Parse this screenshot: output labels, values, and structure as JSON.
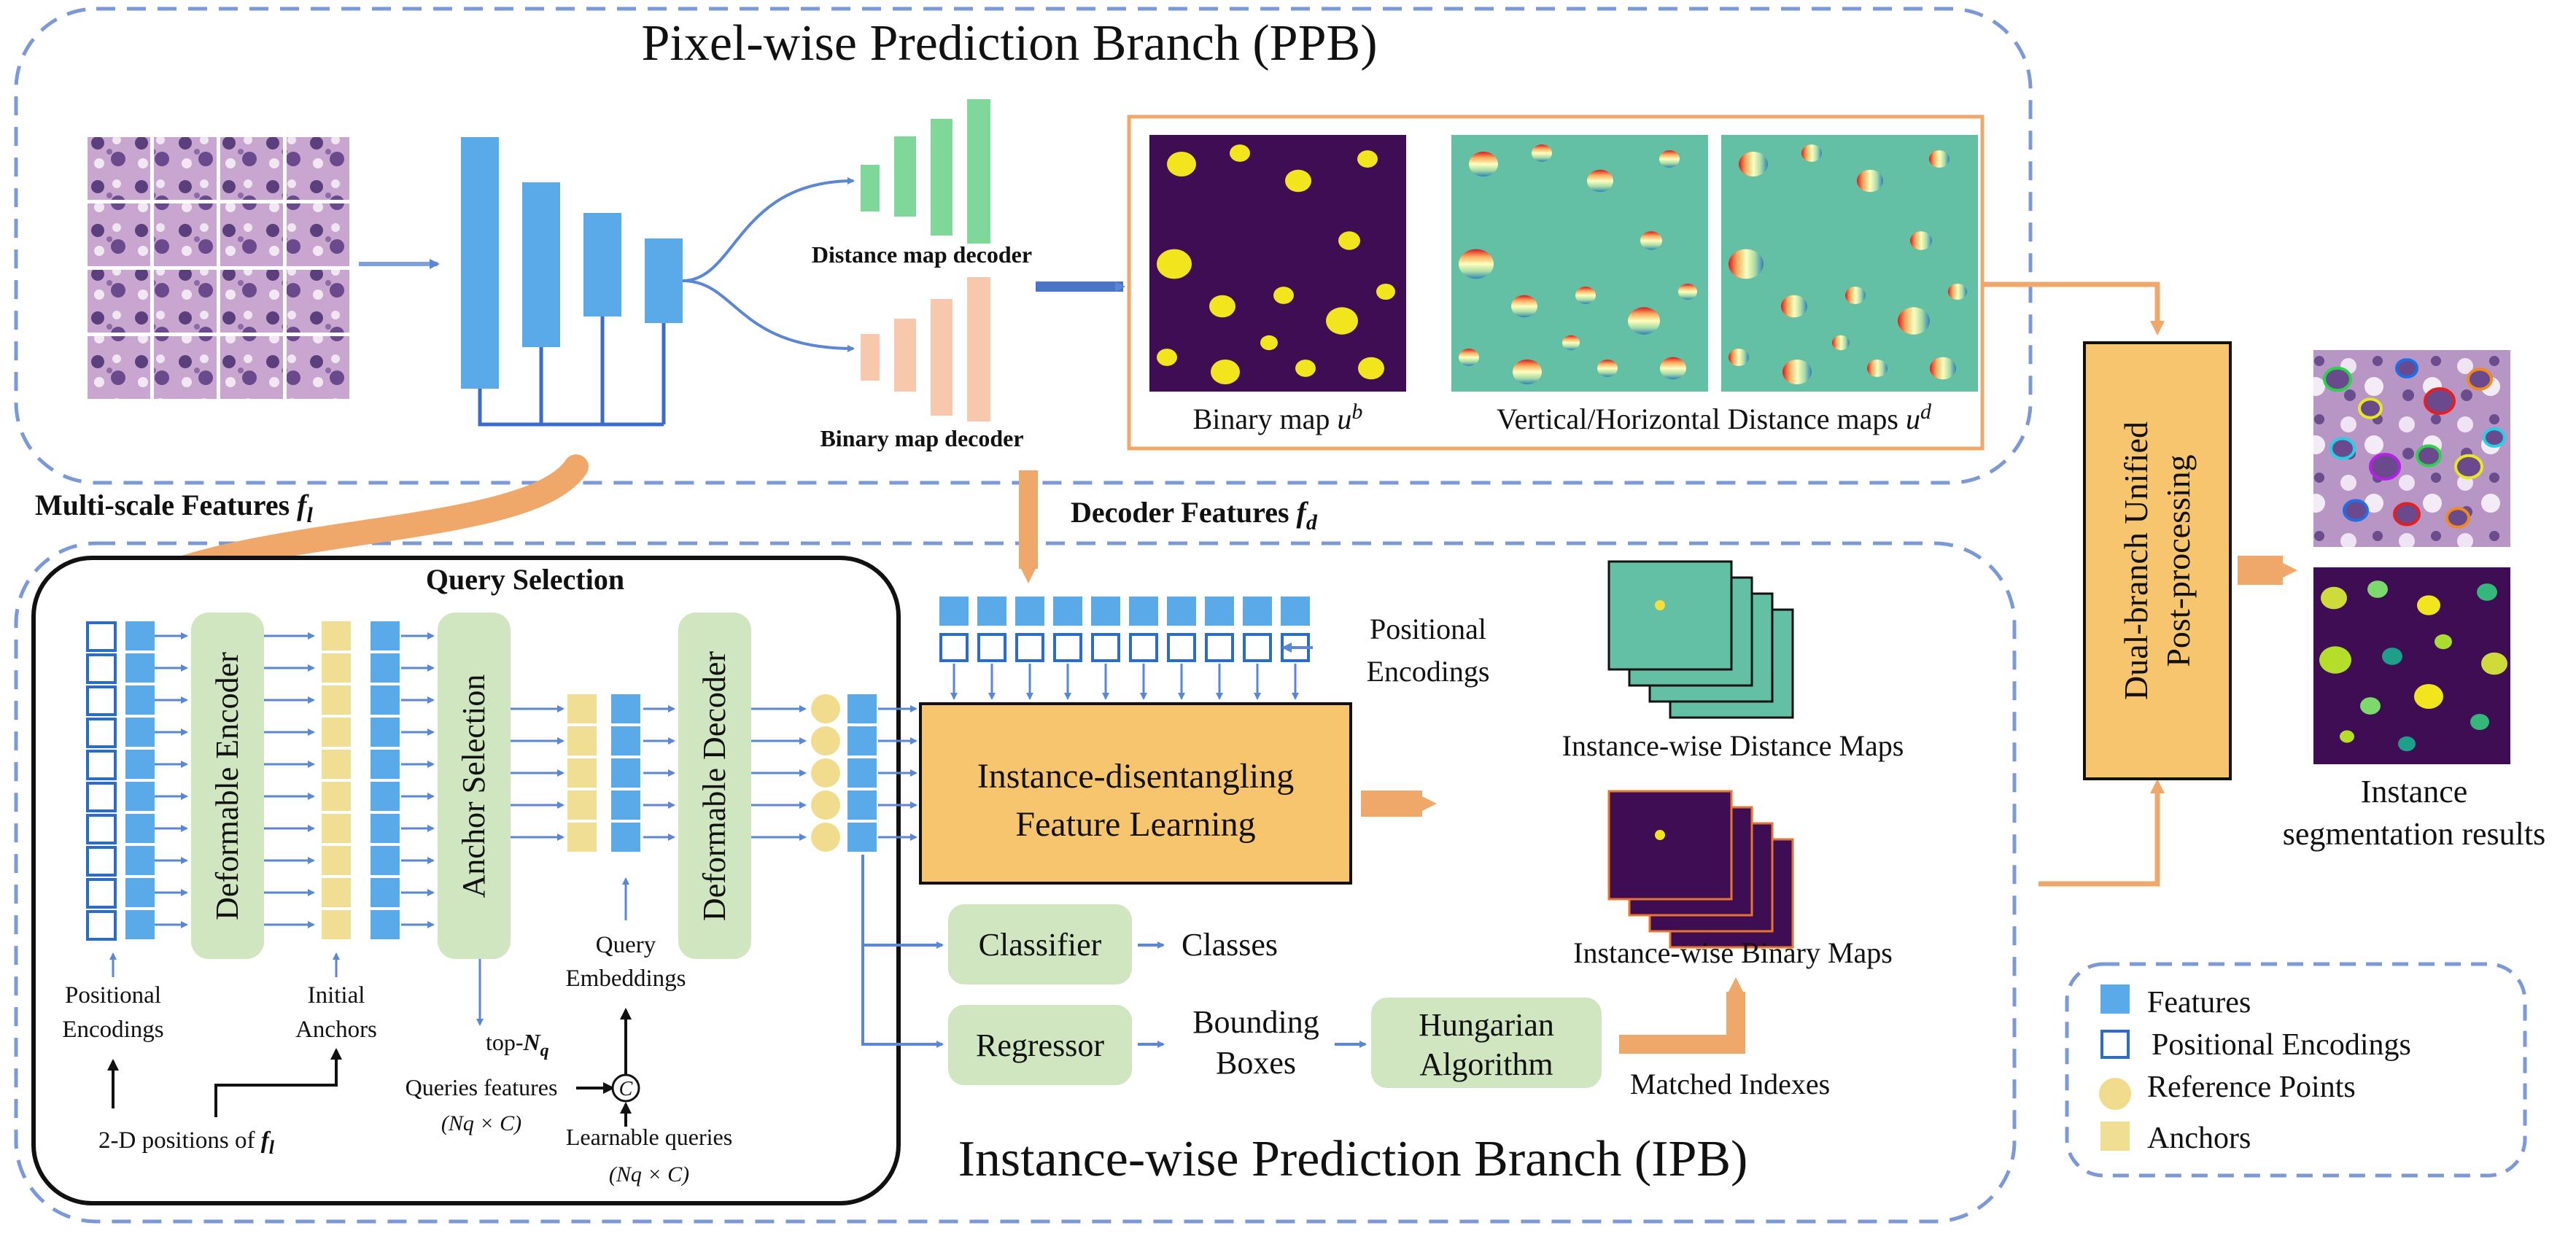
{
  "ppb": {
    "title": "Pixel-wise Prediction Branch (PPB)",
    "distance_decoder": "Distance map decoder",
    "binary_decoder": "Binary map decoder",
    "binary_map_label": "Binary map",
    "binary_map_sym": "u",
    "binary_map_sup": "b",
    "vh_label": "Vertical/Horizontal",
    "dist_label": "Distance maps",
    "dist_sym": "u",
    "dist_sup": "d"
  },
  "links": {
    "multiscale": "Multi-scale Features",
    "multiscale_sym": "f",
    "multiscale_sub": "l",
    "decoder_feat": "Decoder Features",
    "decoder_sym": "f",
    "decoder_sub": "d"
  },
  "query": {
    "title": "Query Selection",
    "deformable_encoder": "Deformable Encoder",
    "anchor_selection": "Anchor Selection",
    "deformable_decoder": "Deformable Decoder",
    "pos_enc_1": "Positional",
    "pos_enc_2": "Encodings",
    "init_anchors_1": "Initial",
    "init_anchors_2": "Anchors",
    "query_emb_1": "Query",
    "query_emb_2": "Embeddings",
    "top_n": "top-",
    "top_n_sym": "N",
    "top_n_sub": "q",
    "positions_2d": "2-D positions of",
    "positions_sym": "f",
    "positions_sub": "l",
    "queries_features": "Queries features",
    "queries_dims": "(Nq × C)",
    "learnable_queries": "Learnable queries",
    "learnable_dims": "(Nq × C)",
    "concat_symbol": "C"
  },
  "ipb": {
    "title": "Instance-wise Prediction Branch (IPB)",
    "pos_enc_1": "Positional",
    "pos_enc_2": "Encodings",
    "idfl_1": "Instance-disentangling",
    "idfl_2": "Feature Learning",
    "classifier": "Classifier",
    "classes": "Classes",
    "regressor": "Regressor",
    "bbox_1": "Bounding",
    "bbox_2": "Boxes",
    "hungarian_1": "Hungarian",
    "hungarian_2": "Algorithm",
    "matched": "Matched Indexes",
    "inst_distance": "Instance-wise Distance Maps",
    "inst_binary": "Instance-wise Binary Maps"
  },
  "post": {
    "line1": "Dual-branch Unified",
    "line2": "Post-processing",
    "result_1": "Instance",
    "result_2": "segmentation results"
  },
  "legend": {
    "features": "Features",
    "pos_enc": "Positional Encodings",
    "ref_points": "Reference Points",
    "anchors": "Anchors"
  },
  "colors": {
    "dashed_border": "#7b98d9",
    "feature_blue": "#5aaaea",
    "green_box": "#cfe6c0",
    "green_decoder": "#7fd89a",
    "peach_decoder": "#f7c8ac",
    "anchor_yellow": "#f0df93",
    "ref_point": "#f0dc8c",
    "orange_arrow": "#f0a86a",
    "idfl_fill": "#f7c56e",
    "map_purple": "#3f0d54",
    "map_teal": "#63c0a4",
    "arrow_blue": "#5a86d6",
    "postproc_fill": "#f7c56e"
  }
}
